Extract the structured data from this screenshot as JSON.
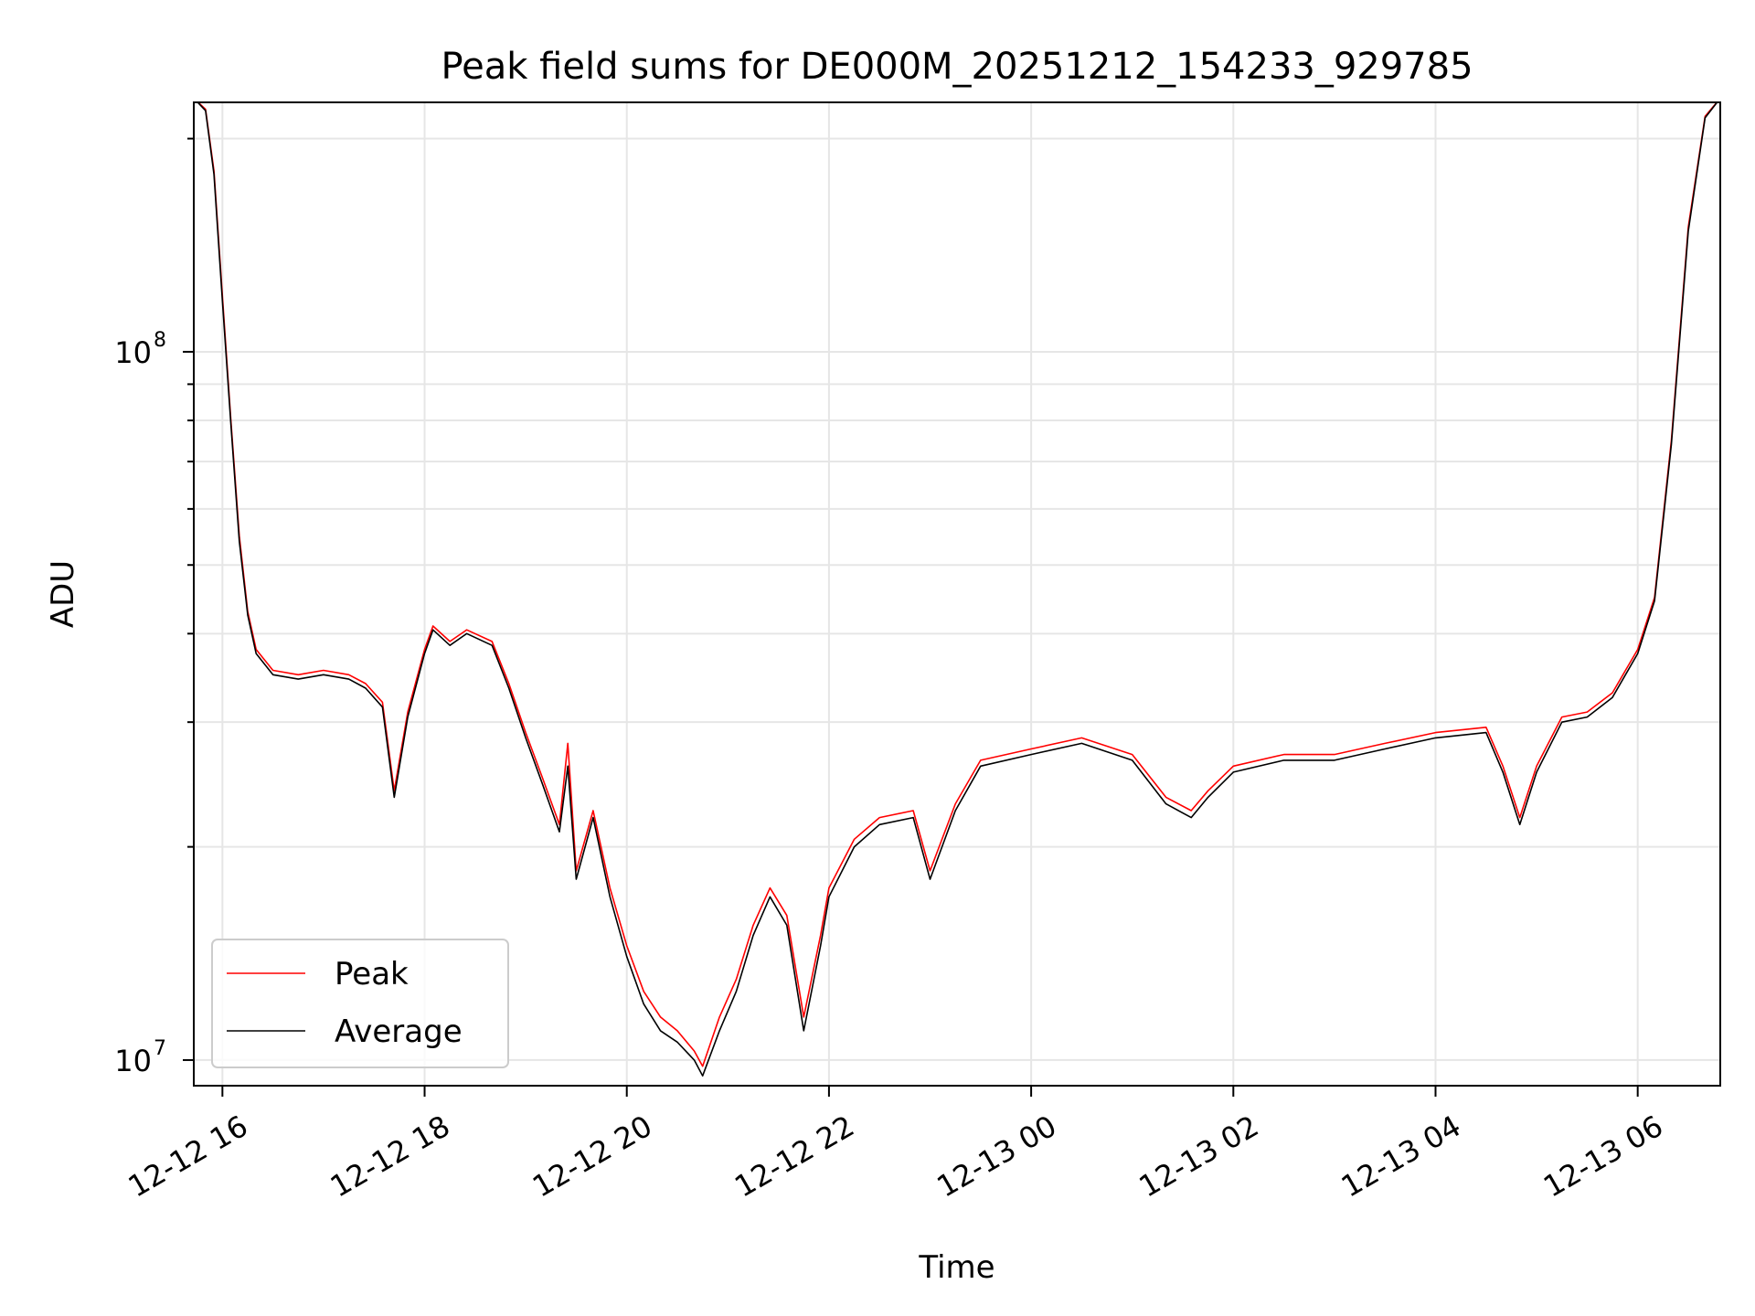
{
  "chart_data": {
    "type": "line",
    "title": "Peak field sums for DE000M_20251212_154233_929785",
    "xlabel": "Time",
    "ylabel": "ADU",
    "yscale": "log",
    "ylim": [
      9200000,
      225000000
    ],
    "xlim": [
      "2025-12-12 15:43",
      "2025-12-13 06:49"
    ],
    "grid": true,
    "legend": "lower-left",
    "x_ticks": [
      {
        "value": "2025-12-12 16:00",
        "label": "12-12 16"
      },
      {
        "value": "2025-12-12 18:00",
        "label": "12-12 18"
      },
      {
        "value": "2025-12-12 20:00",
        "label": "12-12 20"
      },
      {
        "value": "2025-12-12 22:00",
        "label": "12-12 22"
      },
      {
        "value": "2025-12-13 00:00",
        "label": "12-13 00"
      },
      {
        "value": "2025-12-13 02:00",
        "label": "12-13 02"
      },
      {
        "value": "2025-12-13 04:00",
        "label": "12-13 04"
      },
      {
        "value": "2025-12-13 06:00",
        "label": "12-13 06"
      }
    ],
    "y_ticks": [
      {
        "value": 10000000,
        "base": "10",
        "exp": "7"
      },
      {
        "value": 100000000,
        "base": "10",
        "exp": "8"
      }
    ],
    "series": [
      {
        "name": "Peak",
        "color": "#ff0000",
        "points": [
          [
            "2025-12-12 15:43",
            228000000
          ],
          [
            "2025-12-12 15:50",
            220000000
          ],
          [
            "2025-12-12 15:55",
            180000000
          ],
          [
            "2025-12-12 16:00",
            120000000
          ],
          [
            "2025-12-12 16:05",
            80000000
          ],
          [
            "2025-12-12 16:10",
            55000000
          ],
          [
            "2025-12-12 16:15",
            43000000
          ],
          [
            "2025-12-12 16:20",
            38000000
          ],
          [
            "2025-12-12 16:30",
            35500000
          ],
          [
            "2025-12-12 16:45",
            35000000
          ],
          [
            "2025-12-12 17:00",
            35500000
          ],
          [
            "2025-12-12 17:15",
            35000000
          ],
          [
            "2025-12-12 17:25",
            34000000
          ],
          [
            "2025-12-12 17:35",
            32000000
          ],
          [
            "2025-12-12 17:42",
            24000000
          ],
          [
            "2025-12-12 17:50",
            31000000
          ],
          [
            "2025-12-12 18:00",
            38000000
          ],
          [
            "2025-12-12 18:05",
            41000000
          ],
          [
            "2025-12-12 18:15",
            39000000
          ],
          [
            "2025-12-12 18:25",
            40500000
          ],
          [
            "2025-12-12 18:40",
            39000000
          ],
          [
            "2025-12-12 18:50",
            34000000
          ],
          [
            "2025-12-12 19:00",
            29000000
          ],
          [
            "2025-12-12 19:10",
            25000000
          ],
          [
            "2025-12-12 19:20",
            21500000
          ],
          [
            "2025-12-12 19:25",
            28000000
          ],
          [
            "2025-12-12 19:30",
            18500000
          ],
          [
            "2025-12-12 19:40",
            22500000
          ],
          [
            "2025-12-12 19:50",
            17500000
          ],
          [
            "2025-12-12 20:00",
            14500000
          ],
          [
            "2025-12-12 20:10",
            12500000
          ],
          [
            "2025-12-12 20:20",
            11500000
          ],
          [
            "2025-12-12 20:30",
            11000000
          ],
          [
            "2025-12-12 20:40",
            10300000
          ],
          [
            "2025-12-12 20:45",
            9800000
          ],
          [
            "2025-12-12 20:55",
            11500000
          ],
          [
            "2025-12-12 21:05",
            13000000
          ],
          [
            "2025-12-12 21:15",
            15500000
          ],
          [
            "2025-12-12 21:25",
            17500000
          ],
          [
            "2025-12-12 21:35",
            16000000
          ],
          [
            "2025-12-12 21:45",
            11500000
          ],
          [
            "2025-12-12 21:55",
            15000000
          ],
          [
            "2025-12-12 22:00",
            17500000
          ],
          [
            "2025-12-12 22:15",
            20500000
          ],
          [
            "2025-12-12 22:30",
            22000000
          ],
          [
            "2025-12-12 22:50",
            22500000
          ],
          [
            "2025-12-12 23:00",
            18500000
          ],
          [
            "2025-12-12 23:15",
            23000000
          ],
          [
            "2025-12-12 23:30",
            26500000
          ],
          [
            "2025-12-13 00:00",
            27500000
          ],
          [
            "2025-12-13 00:30",
            28500000
          ],
          [
            "2025-12-13 01:00",
            27000000
          ],
          [
            "2025-12-13 01:20",
            23500000
          ],
          [
            "2025-12-13 01:35",
            22500000
          ],
          [
            "2025-12-13 01:45",
            24000000
          ],
          [
            "2025-12-13 02:00",
            26000000
          ],
          [
            "2025-12-13 02:30",
            27000000
          ],
          [
            "2025-12-13 03:00",
            27000000
          ],
          [
            "2025-12-13 03:30",
            28000000
          ],
          [
            "2025-12-13 04:00",
            29000000
          ],
          [
            "2025-12-13 04:30",
            29500000
          ],
          [
            "2025-12-13 04:40",
            26000000
          ],
          [
            "2025-12-13 04:50",
            22000000
          ],
          [
            "2025-12-13 05:00",
            26000000
          ],
          [
            "2025-12-13 05:15",
            30500000
          ],
          [
            "2025-12-13 05:30",
            31000000
          ],
          [
            "2025-12-13 05:45",
            33000000
          ],
          [
            "2025-12-13 06:00",
            38000000
          ],
          [
            "2025-12-13 06:10",
            45000000
          ],
          [
            "2025-12-13 06:20",
            75000000
          ],
          [
            "2025-12-13 06:30",
            150000000
          ],
          [
            "2025-12-13 06:40",
            215000000
          ],
          [
            "2025-12-13 06:49",
            228000000
          ]
        ]
      },
      {
        "name": "Average",
        "color": "#000000",
        "points": [
          [
            "2025-12-12 15:43",
            228000000
          ],
          [
            "2025-12-12 15:50",
            219000000
          ],
          [
            "2025-12-12 15:55",
            178000000
          ],
          [
            "2025-12-12 16:00",
            118000000
          ],
          [
            "2025-12-12 16:05",
            79000000
          ],
          [
            "2025-12-12 16:10",
            54000000
          ],
          [
            "2025-12-12 16:15",
            42500000
          ],
          [
            "2025-12-12 16:20",
            37500000
          ],
          [
            "2025-12-12 16:30",
            35000000
          ],
          [
            "2025-12-12 16:45",
            34500000
          ],
          [
            "2025-12-12 17:00",
            35000000
          ],
          [
            "2025-12-12 17:15",
            34500000
          ],
          [
            "2025-12-12 17:25",
            33500000
          ],
          [
            "2025-12-12 17:35",
            31500000
          ],
          [
            "2025-12-12 17:42",
            23500000
          ],
          [
            "2025-12-12 17:50",
            30500000
          ],
          [
            "2025-12-12 18:00",
            37500000
          ],
          [
            "2025-12-12 18:05",
            40500000
          ],
          [
            "2025-12-12 18:15",
            38500000
          ],
          [
            "2025-12-12 18:25",
            40000000
          ],
          [
            "2025-12-12 18:40",
            38500000
          ],
          [
            "2025-12-12 18:50",
            33500000
          ],
          [
            "2025-12-12 19:00",
            28500000
          ],
          [
            "2025-12-12 19:10",
            24500000
          ],
          [
            "2025-12-12 19:20",
            21000000
          ],
          [
            "2025-12-12 19:25",
            26000000
          ],
          [
            "2025-12-12 19:30",
            18000000
          ],
          [
            "2025-12-12 19:40",
            22000000
          ],
          [
            "2025-12-12 19:50",
            17000000
          ],
          [
            "2025-12-12 20:00",
            14000000
          ],
          [
            "2025-12-12 20:10",
            12000000
          ],
          [
            "2025-12-12 20:20",
            11000000
          ],
          [
            "2025-12-12 20:30",
            10600000
          ],
          [
            "2025-12-12 20:40",
            10000000
          ],
          [
            "2025-12-12 20:45",
            9500000
          ],
          [
            "2025-12-12 20:55",
            11000000
          ],
          [
            "2025-12-12 21:05",
            12500000
          ],
          [
            "2025-12-12 21:15",
            15000000
          ],
          [
            "2025-12-12 21:25",
            17000000
          ],
          [
            "2025-12-12 21:35",
            15500000
          ],
          [
            "2025-12-12 21:45",
            11000000
          ],
          [
            "2025-12-12 21:55",
            14500000
          ],
          [
            "2025-12-12 22:00",
            17000000
          ],
          [
            "2025-12-12 22:15",
            20000000
          ],
          [
            "2025-12-12 22:30",
            21500000
          ],
          [
            "2025-12-12 22:50",
            22000000
          ],
          [
            "2025-12-12 23:00",
            18000000
          ],
          [
            "2025-12-12 23:15",
            22500000
          ],
          [
            "2025-12-12 23:30",
            26000000
          ],
          [
            "2025-12-13 00:00",
            27000000
          ],
          [
            "2025-12-13 00:30",
            28000000
          ],
          [
            "2025-12-13 01:00",
            26500000
          ],
          [
            "2025-12-13 01:20",
            23000000
          ],
          [
            "2025-12-13 01:35",
            22000000
          ],
          [
            "2025-12-13 01:45",
            23500000
          ],
          [
            "2025-12-13 02:00",
            25500000
          ],
          [
            "2025-12-13 02:30",
            26500000
          ],
          [
            "2025-12-13 03:00",
            26500000
          ],
          [
            "2025-12-13 03:30",
            27500000
          ],
          [
            "2025-12-13 04:00",
            28500000
          ],
          [
            "2025-12-13 04:30",
            29000000
          ],
          [
            "2025-12-13 04:40",
            25500000
          ],
          [
            "2025-12-13 04:50",
            21500000
          ],
          [
            "2025-12-13 05:00",
            25500000
          ],
          [
            "2025-12-13 05:15",
            30000000
          ],
          [
            "2025-12-13 05:30",
            30500000
          ],
          [
            "2025-12-13 05:45",
            32500000
          ],
          [
            "2025-12-13 06:00",
            37500000
          ],
          [
            "2025-12-13 06:10",
            44500000
          ],
          [
            "2025-12-13 06:20",
            74000000
          ],
          [
            "2025-12-13 06:30",
            148000000
          ],
          [
            "2025-12-13 06:40",
            214000000
          ],
          [
            "2025-12-13 06:49",
            228000000
          ]
        ]
      }
    ]
  }
}
